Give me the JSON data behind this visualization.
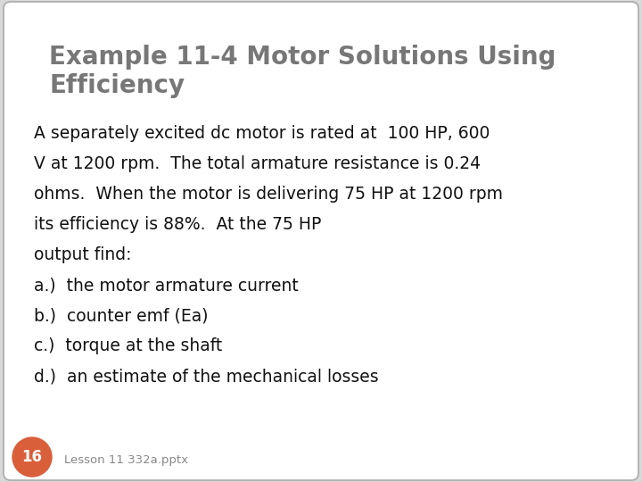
{
  "title_line1": "Example 11-4 Motor Solutions Using",
  "title_line2": "Efficiency",
  "title_color": "#777777",
  "title_fontsize": 20,
  "body_lines": [
    "A separately excited dc motor is rated at  100 HP, 600",
    "V at 1200 rpm.  The total armature resistance is 0.24",
    "ohms.  When the motor is delivering 75 HP at 1200 rpm",
    "its efficiency is 88%.  At the 75 HP",
    "output find:",
    "a.)  the motor armature current",
    "b.)  counter emf (Ea)",
    "c.)  torque at the shaft",
    "d.)  an estimate of the mechanical losses"
  ],
  "body_fontsize": 13.5,
  "body_color": "#111111",
  "background_color": "#ffffff",
  "outer_bg": "#d8d8d8",
  "border_color": "#aaaaaa",
  "badge_color": "#d95f3b",
  "badge_text": "16",
  "badge_fontsize": 12,
  "footer_text": "Lesson 11 332a.pptx",
  "footer_fontsize": 9.5,
  "footer_color": "#888888"
}
